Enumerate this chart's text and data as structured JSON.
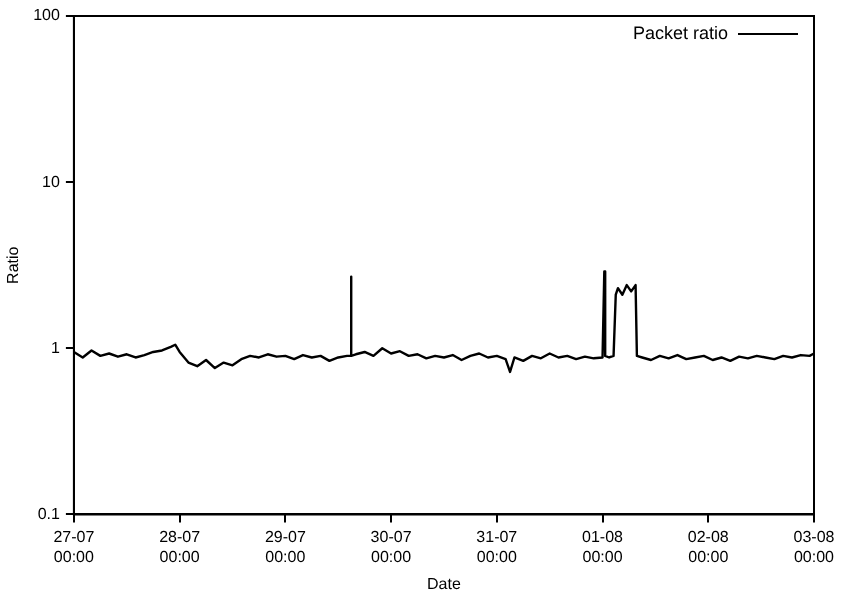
{
  "chart_data": {
    "type": "line",
    "xlabel": "Date",
    "ylabel": "Ratio",
    "log": "y",
    "legend": "top right",
    "grid": false,
    "marker": "none",
    "line_style": "solid",
    "xlim": [
      "--07-27T00:00",
      "--08-03T00:00"
    ],
    "xticks": [
      {
        "value": "--07-27T00:00",
        "label": "27-07 00:00"
      },
      {
        "value": "--07-28T00:00",
        "label": "28-07 00:00"
      },
      {
        "value": "--07-29T00:00",
        "label": "29-07 00:00"
      },
      {
        "value": "--07-30T00:00",
        "label": "30-07 00:00"
      },
      {
        "value": "--07-31T00:00",
        "label": "31-07 00:00"
      },
      {
        "value": "--08-01T00:00",
        "label": "01-08 00:00"
      },
      {
        "value": "--08-02T00:00",
        "label": "02-08 00:00"
      },
      {
        "value": "--08-03T00:00",
        "label": "03-08 00:00"
      }
    ],
    "ylim": [
      0.1,
      100
    ],
    "yticks": [
      0.1,
      1,
      10,
      100
    ],
    "series": [
      {
        "name": "Packet ratio",
        "color": "#000000",
        "x": [
          "--07-27T00:00",
          "--07-27T02:00",
          "--07-27T04:00",
          "--07-27T06:00",
          "--07-27T08:00",
          "--07-27T10:00",
          "--07-27T12:00",
          "--07-27T14:00",
          "--07-27T16:00",
          "--07-27T18:00",
          "--07-27T20:00",
          "--07-27T22:00",
          "--07-27T23:00",
          "--07-28T00:00",
          "--07-28T02:00",
          "--07-28T04:00",
          "--07-28T06:00",
          "--07-28T08:00",
          "--07-28T10:00",
          "--07-28T12:00",
          "--07-28T14:00",
          "--07-28T16:00",
          "--07-28T18:00",
          "--07-28T20:00",
          "--07-28T22:00",
          "--07-29T00:00",
          "--07-29T02:00",
          "--07-29T04:00",
          "--07-29T06:00",
          "--07-29T08:00",
          "--07-29T10:00",
          "--07-29T12:00",
          "--07-29T14:00",
          "--07-29T14:48",
          "--07-29T14:54",
          "--07-29T15:00",
          "--07-29T16:00",
          "--07-29T18:00",
          "--07-29T20:00",
          "--07-29T22:00",
          "--07-30T00:00",
          "--07-30T02:00",
          "--07-30T04:00",
          "--07-30T06:00",
          "--07-30T08:00",
          "--07-30T10:00",
          "--07-30T12:00",
          "--07-30T14:00",
          "--07-30T16:00",
          "--07-30T18:00",
          "--07-30T20:00",
          "--07-30T22:00",
          "--07-31T00:00",
          "--07-31T02:00",
          "--07-31T03:00",
          "--07-31T04:00",
          "--07-31T06:00",
          "--07-31T08:00",
          "--07-31T10:00",
          "--07-31T12:00",
          "--07-31T14:00",
          "--07-31T16:00",
          "--07-31T18:00",
          "--07-31T20:00",
          "--07-31T22:00",
          "--08-01T00:00",
          "--08-01T00:18",
          "--08-01T00:24",
          "--08-01T00:36",
          "--08-01T01:30",
          "--08-01T02:30",
          "--08-01T03:00",
          "--08-01T03:30",
          "--08-01T04:30",
          "--08-01T05:30",
          "--08-01T06:30",
          "--08-01T07:30",
          "--08-01T07:48",
          "--08-01T09:00",
          "--08-01T11:00",
          "--08-01T13:00",
          "--08-01T15:00",
          "--08-01T17:00",
          "--08-01T19:00",
          "--08-01T21:00",
          "--08-01T23:00",
          "--08-02T01:00",
          "--08-02T03:00",
          "--08-02T05:00",
          "--08-02T07:00",
          "--08-02T09:00",
          "--08-02T11:00",
          "--08-02T13:00",
          "--08-02T15:00",
          "--08-02T17:00",
          "--08-02T19:00",
          "--08-02T21:00",
          "--08-02T23:00",
          "--08-03T00:00"
        ],
        "values": [
          0.95,
          0.88,
          0.97,
          0.9,
          0.93,
          0.89,
          0.92,
          0.88,
          0.91,
          0.95,
          0.97,
          1.02,
          1.05,
          0.95,
          0.82,
          0.78,
          0.85,
          0.76,
          0.82,
          0.79,
          0.86,
          0.9,
          0.88,
          0.92,
          0.89,
          0.9,
          0.86,
          0.91,
          0.88,
          0.9,
          0.84,
          0.88,
          0.9,
          0.9,
          2.7,
          0.9,
          0.92,
          0.95,
          0.9,
          1.0,
          0.93,
          0.96,
          0.9,
          0.92,
          0.87,
          0.9,
          0.88,
          0.91,
          0.85,
          0.9,
          0.93,
          0.88,
          0.9,
          0.86,
          0.72,
          0.88,
          0.84,
          0.9,
          0.87,
          0.93,
          0.88,
          0.9,
          0.86,
          0.89,
          0.87,
          0.88,
          0.88,
          2.9,
          0.9,
          0.88,
          0.9,
          2.1,
          2.3,
          2.1,
          2.4,
          2.2,
          2.4,
          0.9,
          0.88,
          0.85,
          0.9,
          0.87,
          0.91,
          0.86,
          0.88,
          0.9,
          0.85,
          0.88,
          0.84,
          0.89,
          0.87,
          0.9,
          0.88,
          0.86,
          0.9,
          0.88,
          0.91,
          0.9,
          0.93
        ]
      }
    ]
  }
}
